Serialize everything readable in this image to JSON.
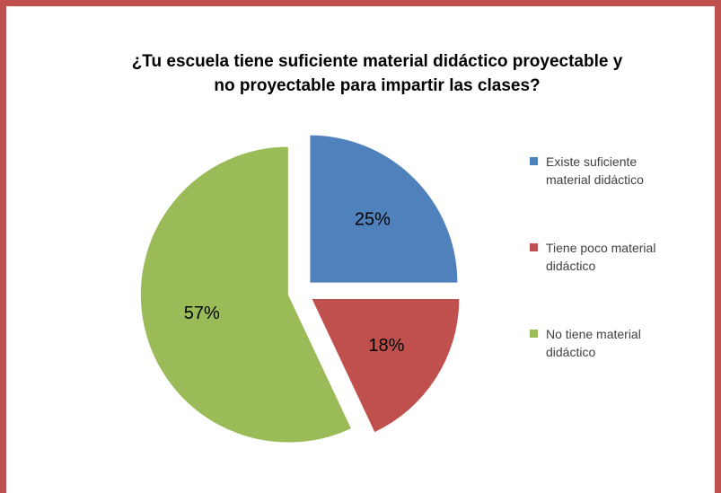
{
  "chart_data": {
    "type": "pie",
    "title": [
      "¿Tu escuela tiene suficiente material didáctico proyectable y",
      "no proyectable  para impartir las clases?"
    ],
    "categories": [
      "Existe suficiente material didáctico",
      "Tiene poco material didáctico",
      "No tiene material didáctico"
    ],
    "values": [
      25,
      18,
      57
    ],
    "value_labels": [
      "25%",
      "18%",
      "57%"
    ],
    "colors": [
      "#4f81bd",
      "#c0504d",
      "#9bbb59"
    ],
    "exploded": true,
    "legend": "right"
  }
}
